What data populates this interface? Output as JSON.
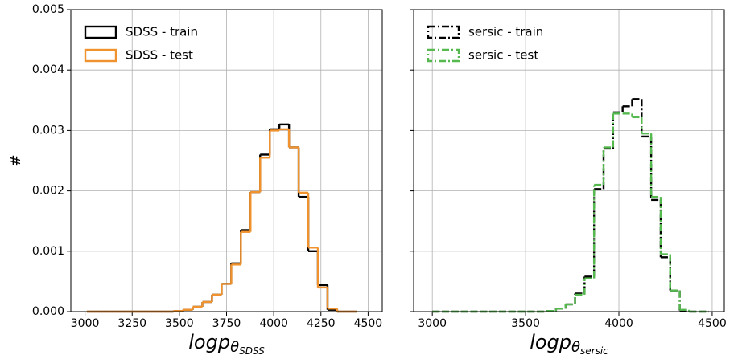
{
  "chart_data": [
    {
      "type": "histogram",
      "ylabel": "#",
      "xlabel": {
        "main": "logp",
        "sub": "θ",
        "subsub": "SDSS"
      },
      "bins": [
        3010,
        3061,
        3112,
        3163,
        3214,
        3265,
        3316,
        3367,
        3418,
        3469,
        3520,
        3571,
        3622,
        3673,
        3724,
        3775,
        3826,
        3877,
        3928,
        3979,
        4030,
        4081,
        4132,
        4183,
        4234,
        4285,
        4336,
        4387,
        4438
      ],
      "series": [
        {
          "name": "SDSS - train",
          "color": "#000000",
          "values": [
            0,
            0,
            0,
            0,
            0,
            0,
            0,
            0,
            0,
            1e-05,
            3e-05,
            8e-05,
            0.00016,
            0.00028,
            0.00046,
            0.0008,
            0.00135,
            0.00198,
            0.0026,
            0.00302,
            0.0031,
            0.00272,
            0.0019,
            0.001,
            0.00044,
            3e-05,
            0,
            0
          ]
        },
        {
          "name": "SDSS - test",
          "color": "#f0922e",
          "values": [
            0,
            0,
            0,
            0,
            0,
            0,
            0,
            0,
            0,
            1e-05,
            3e-05,
            8e-05,
            0.00016,
            0.00028,
            0.00046,
            0.00078,
            0.00132,
            0.00198,
            0.00255,
            0.003,
            0.00302,
            0.00272,
            0.00197,
            0.00106,
            0.0004,
            5e-05,
            0,
            0
          ]
        }
      ],
      "linestyle": "solid",
      "xlim": [
        2925,
        4575
      ],
      "xticks": [
        3000,
        3250,
        3500,
        3750,
        4000,
        4250,
        4500
      ],
      "ylim": [
        0,
        0.005
      ],
      "yticks": [
        {
          "value": 0,
          "label": "0.000"
        },
        {
          "value": 0.001,
          "label": "0.001"
        },
        {
          "value": 0.002,
          "label": "0.002"
        },
        {
          "value": 0.003,
          "label": "0.003"
        },
        {
          "value": 0.004,
          "label": "0.004"
        },
        {
          "value": 0.005,
          "label": "0.005"
        }
      ],
      "grid": true,
      "legend": "upper left"
    },
    {
      "type": "histogram",
      "xlabel": {
        "main": "logp",
        "sub": "θ",
        "subsub": "sersic"
      },
      "bins": [
        3000,
        3051,
        3102,
        3153,
        3204,
        3255,
        3306,
        3357,
        3408,
        3459,
        3510,
        3561,
        3612,
        3663,
        3714,
        3765,
        3816,
        3867,
        3918,
        3969,
        4020,
        4071,
        4122,
        4173,
        4224,
        4275,
        4326,
        4377,
        4428,
        4479
      ],
      "series": [
        {
          "name": "sersic - train",
          "color": "#000000",
          "values": [
            0,
            0,
            0,
            0,
            0,
            0,
            0,
            0,
            0,
            0,
            0,
            0,
            1e-05,
            5e-05,
            0.00012,
            0.0003,
            0.00058,
            0.00203,
            0.0027,
            0.0033,
            0.0034,
            0.00352,
            0.0029,
            0.00185,
            0.0009,
            0.00035,
            2e-05,
            0,
            0
          ]
        },
        {
          "name": "sersic - test",
          "color": "#55b94f",
          "values": [
            0,
            0,
            0,
            0,
            0,
            0,
            0,
            0,
            0,
            0,
            0,
            0,
            1e-05,
            5e-05,
            0.00012,
            0.00028,
            0.00055,
            0.0021,
            0.00272,
            0.00328,
            0.00328,
            0.00322,
            0.00295,
            0.0019,
            0.00095,
            0.00035,
            3e-05,
            0,
            0
          ]
        }
      ],
      "linestyle": "dashdot",
      "xlim": [
        2900,
        4565
      ],
      "xticks": [
        3000,
        3500,
        4000,
        4500
      ],
      "ylim": [
        0,
        0.005
      ],
      "yticks": [
        0,
        0.001,
        0.002,
        0.003,
        0.004,
        0.005
      ],
      "grid": true,
      "legend": "upper left"
    }
  ]
}
